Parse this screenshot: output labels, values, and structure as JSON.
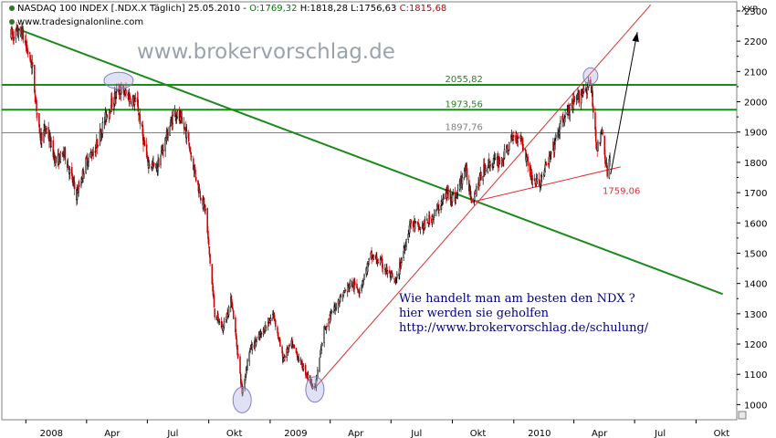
{
  "header": {
    "instrument": "NASDAQ 100 INDEX [.NDX.X  Täglich] 25.05.2010 - ",
    "open_label": "O:1769,32",
    "hl_label": " H:1818,28 L:1756,63 ",
    "close_label": "C:1815,68",
    "source": "www.tradesignalonline.com"
  },
  "watermark": "www.brokervorschlag.de",
  "note_lines": [
    "Wie handelt man am besten den NDX ?",
    "hier werden sie geholfen",
    "http://www.brokervorschlag.de/schulung/"
  ],
  "colors": {
    "up": "#000000",
    "down": "#cc0000",
    "trendline_green": "#1a8a1a",
    "level_green": "#1a8a1a",
    "level_gray": "#808080",
    "support_red": "#e03030",
    "circle": "#8080c0"
  },
  "chart_data": {
    "type": "candlestick",
    "y_axis_label": "XXP",
    "ylim": [
      950,
      2330
    ],
    "y_ticks": [
      1000,
      1100,
      1200,
      1300,
      1400,
      1500,
      1600,
      1700,
      1800,
      1900,
      2000,
      2100,
      2200,
      2300
    ],
    "x_ticks": [
      "2008",
      "Apr",
      "Jul",
      "Okt",
      "2009",
      "Apr",
      "Jul",
      "Okt",
      "2010",
      "Apr",
      "Jul",
      "Okt"
    ],
    "grid": false,
    "price_path": [
      [
        "2007-12-10",
        2220
      ],
      [
        "2007-12-26",
        2230
      ],
      [
        "2008-01-10",
        2120
      ],
      [
        "2008-01-22",
        1880
      ],
      [
        "2008-02-01",
        1910
      ],
      [
        "2008-02-15",
        1800
      ],
      [
        "2008-02-28",
        1830
      ],
      [
        "2008-03-17",
        1690
      ],
      [
        "2008-03-31",
        1800
      ],
      [
        "2008-04-15",
        1850
      ],
      [
        "2008-05-01",
        1960
      ],
      [
        "2008-05-19",
        2040
      ],
      [
        "2008-06-02",
        2020
      ],
      [
        "2008-06-16",
        1990
      ],
      [
        "2008-07-01",
        1800
      ],
      [
        "2008-07-15",
        1780
      ],
      [
        "2008-08-11",
        1970
      ],
      [
        "2008-08-28",
        1900
      ],
      [
        "2008-09-15",
        1720
      ],
      [
        "2008-09-26",
        1640
      ],
      [
        "2008-10-10",
        1300
      ],
      [
        "2008-10-22",
        1250
      ],
      [
        "2008-11-04",
        1350
      ],
      [
        "2008-11-20",
        1040
      ],
      [
        "2008-12-01",
        1180
      ],
      [
        "2008-12-15",
        1220
      ],
      [
        "2009-01-06",
        1300
      ],
      [
        "2009-01-20",
        1150
      ],
      [
        "2009-02-02",
        1200
      ],
      [
        "2009-02-20",
        1120
      ],
      [
        "2009-03-09",
        1050
      ],
      [
        "2009-03-23",
        1250
      ],
      [
        "2009-04-15",
        1350
      ],
      [
        "2009-05-01",
        1400
      ],
      [
        "2009-05-15",
        1380
      ],
      [
        "2009-06-01",
        1490
      ],
      [
        "2009-06-15",
        1470
      ],
      [
        "2009-07-08",
        1400
      ],
      [
        "2009-07-30",
        1600
      ],
      [
        "2009-08-14",
        1580
      ],
      [
        "2009-09-01",
        1620
      ],
      [
        "2009-09-24",
        1700
      ],
      [
        "2009-10-05",
        1680
      ],
      [
        "2009-10-20",
        1780
      ],
      [
        "2009-10-30",
        1680
      ],
      [
        "2009-11-20",
        1790
      ],
      [
        "2009-12-15",
        1810
      ],
      [
        "2009-12-30",
        1880
      ],
      [
        "2010-01-11",
        1890
      ],
      [
        "2010-01-29",
        1740
      ],
      [
        "2010-02-08",
        1730
      ],
      [
        "2010-02-25",
        1820
      ],
      [
        "2010-03-15",
        1940
      ],
      [
        "2010-04-01",
        1990
      ],
      [
        "2010-04-15",
        2040
      ],
      [
        "2010-04-26",
        2056
      ],
      [
        "2010-05-06",
        1840
      ],
      [
        "2010-05-13",
        1900
      ],
      [
        "2010-05-21",
        1760
      ],
      [
        "2010-05-25",
        1815
      ]
    ],
    "horizontal_levels": [
      {
        "value": 2055.82,
        "label": "2055,82",
        "color": "green"
      },
      {
        "value": 1973.56,
        "label": "1973,56",
        "color": "green"
      },
      {
        "value": 1897.76,
        "label": "1897,76",
        "color": "gray"
      }
    ],
    "support_label": "1759,06",
    "trendlines": [
      {
        "color": "green",
        "points": [
          [
            "2007-12-20",
            2240
          ],
          [
            "2010-11-10",
            1365
          ]
        ]
      },
      {
        "color": "red",
        "points": [
          [
            "2009-03-09",
            1055
          ],
          [
            "2010-07-25",
            2320
          ]
        ]
      },
      {
        "color": "red",
        "points": [
          [
            "2009-10-28",
            1668
          ],
          [
            "2010-06-10",
            1785
          ]
        ]
      }
    ],
    "arrow": {
      "from": [
        "2010-05-26",
        1760
      ],
      "to": [
        "2010-07-05",
        2230
      ]
    },
    "circles": [
      {
        "date": "2008-05-19",
        "value": 2070
      },
      {
        "date": "2010-04-26",
        "value": 2085
      },
      {
        "date": "2008-11-20",
        "value": 1015
      },
      {
        "date": "2009-03-09",
        "value": 1050
      }
    ]
  }
}
